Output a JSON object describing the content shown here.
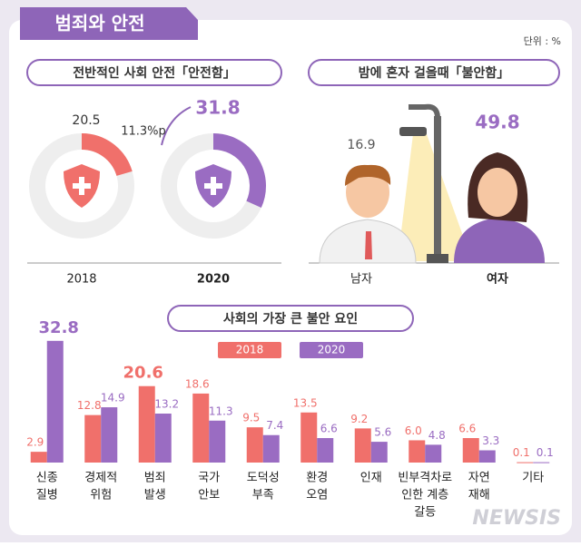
{
  "header": {
    "title": "범죄와 안전",
    "unit": "단위 : %",
    "watermark": "NEWSIS"
  },
  "chart_data": [
    {
      "type": "donut",
      "title": "전반적인 사회 안전「안전함」",
      "categories": [
        "2018",
        "2020"
      ],
      "values": [
        20.5,
        31.8
      ],
      "colors": [
        "#f0706b",
        "#9a6cc2"
      ],
      "annotation": "11.3%p",
      "ylim": [
        0,
        100
      ]
    },
    {
      "type": "pictogram",
      "title": "밤에 혼자 걸을때「불안함」",
      "categories": [
        "남자",
        "여자"
      ],
      "values": [
        16.9,
        49.8
      ],
      "colors": [
        "#555555",
        "#9a6cc2"
      ]
    },
    {
      "type": "grouped-bar",
      "title": "사회의 가장 큰 불안 요인",
      "categories": [
        [
          "신종",
          "질병"
        ],
        [
          "경제적",
          "위험"
        ],
        [
          "범죄",
          "발생"
        ],
        [
          "국가",
          "안보"
        ],
        [
          "도덕성",
          "부족"
        ],
        [
          "환경",
          "오염"
        ],
        [
          "인재"
        ],
        [
          "빈부격차로",
          "인한 계층",
          "갈등"
        ],
        [
          "자연",
          "재해"
        ],
        [
          "기타"
        ]
      ],
      "series": [
        {
          "name": "2018",
          "color": "#f0706b",
          "values": [
            2.9,
            12.8,
            20.6,
            18.6,
            9.5,
            13.5,
            9.2,
            6.0,
            6.6,
            0.1
          ],
          "value_labels": [
            "2.9",
            "12.8",
            "20.6",
            "18.6",
            "9.5",
            "13.5",
            "9.2",
            "6.0",
            "6.6",
            "0.1"
          ]
        },
        {
          "name": "2020",
          "color": "#9a6cc2",
          "values": [
            32.8,
            14.9,
            13.2,
            11.3,
            7.4,
            6.6,
            5.6,
            4.8,
            3.3,
            0.1
          ],
          "value_labels": [
            "32.8",
            "14.9",
            "13.2",
            "11.3",
            "7.4",
            "6.6",
            "5.6",
            "4.8",
            "3.3",
            "0.1"
          ]
        }
      ],
      "ylim": [
        0,
        33
      ]
    }
  ]
}
